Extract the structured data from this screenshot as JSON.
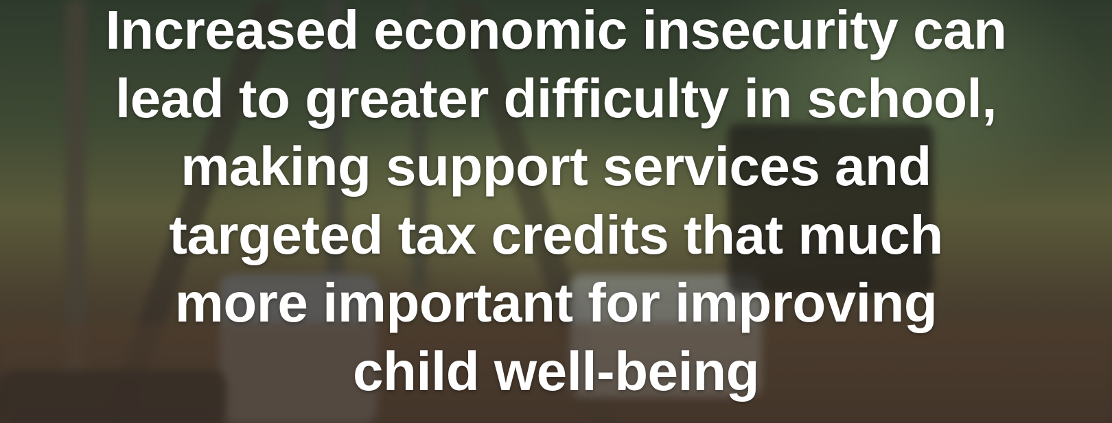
{
  "headline": {
    "lines": [
      "Increased economic insecurity can",
      "lead to greater difficulty in school,",
      "making support services and",
      "targeted tax credits that much",
      "more important for improving",
      "child well-being"
    ]
  }
}
